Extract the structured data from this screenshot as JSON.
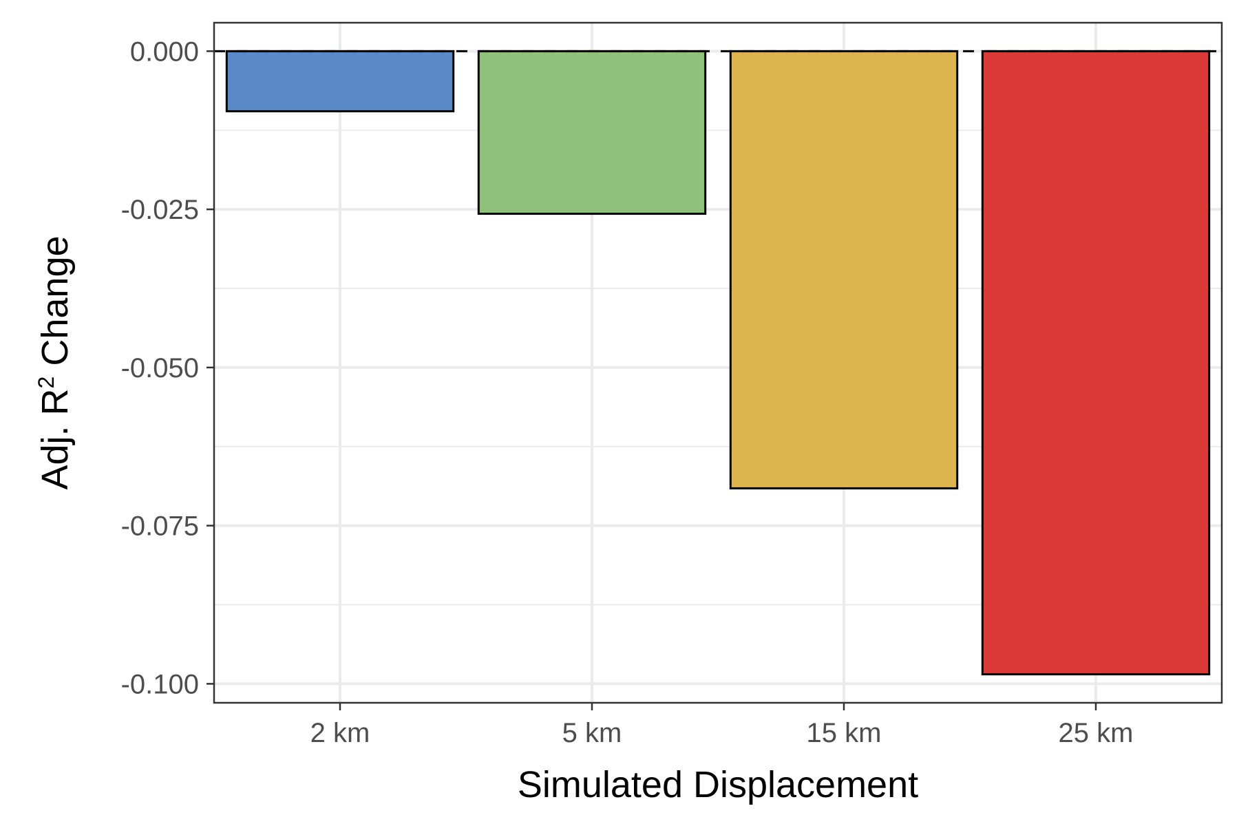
{
  "chart_data": {
    "type": "bar",
    "categories": [
      "2 km",
      "5 km",
      "15 km",
      "25 km"
    ],
    "values": [
      -0.0095,
      -0.0257,
      -0.0691,
      -0.0985
    ],
    "colors": [
      "#5a89c7",
      "#90c17b",
      "#deb44f",
      "#dc3a37"
    ],
    "title": "",
    "xlabel": "Simulated Displacement",
    "ylabel_main": "Adj. R",
    "ylabel_superscript": "2",
    "ylabel_suffix": " Change",
    "ylim": [
      -0.103,
      0.0045
    ],
    "y_ticks": [
      0.0,
      -0.025,
      -0.05,
      -0.075,
      -0.1
    ],
    "y_tick_labels": [
      "0.000",
      "-0.025",
      "-0.050",
      "-0.075",
      "-0.100"
    ],
    "reference_line": 0,
    "grid": true,
    "legend": "none"
  }
}
